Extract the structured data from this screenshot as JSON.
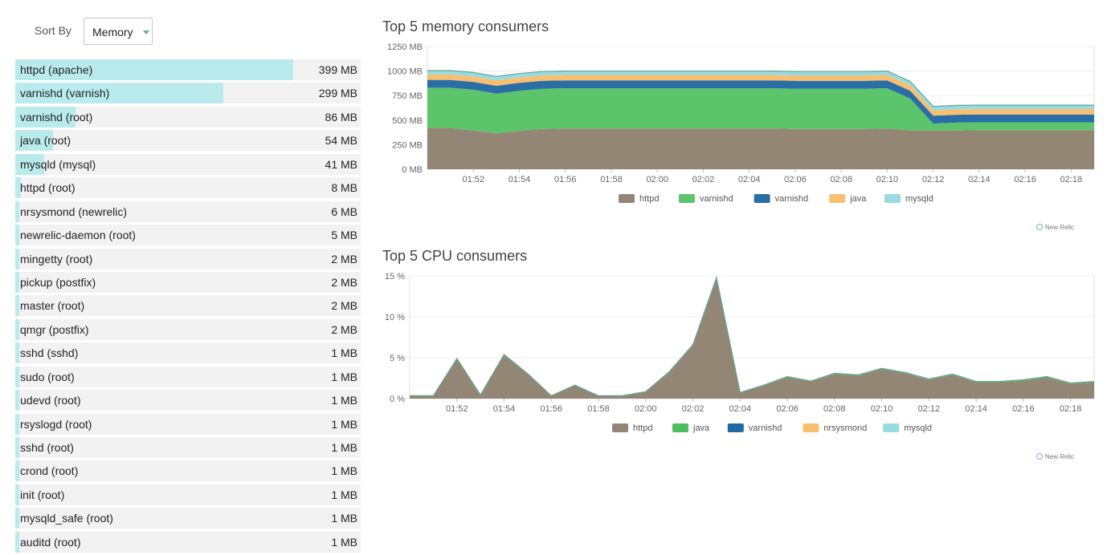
{
  "sort": {
    "label": "Sort By",
    "value": "Memory"
  },
  "process_list": [
    {
      "name": "httpd (apache)",
      "value": "399 MB",
      "mb": 399
    },
    {
      "name": "varnishd (varnish)",
      "value": "299 MB",
      "mb": 299
    },
    {
      "name": "varnishd (root)",
      "value": "86 MB",
      "mb": 86
    },
    {
      "name": "java (root)",
      "value": "54 MB",
      "mb": 54
    },
    {
      "name": "mysqld (mysql)",
      "value": "41 MB",
      "mb": 41
    },
    {
      "name": "httpd (root)",
      "value": "8 MB",
      "mb": 8
    },
    {
      "name": "nrsysmond (newrelic)",
      "value": "6 MB",
      "mb": 6
    },
    {
      "name": "newrelic-daemon (root)",
      "value": "5 MB",
      "mb": 5
    },
    {
      "name": "mingetty (root)",
      "value": "2 MB",
      "mb": 2
    },
    {
      "name": "pickup (postfix)",
      "value": "2 MB",
      "mb": 2
    },
    {
      "name": "master (root)",
      "value": "2 MB",
      "mb": 2
    },
    {
      "name": "qmgr (postfix)",
      "value": "2 MB",
      "mb": 2
    },
    {
      "name": "sshd (sshd)",
      "value": "1 MB",
      "mb": 1
    },
    {
      "name": "sudo (root)",
      "value": "1 MB",
      "mb": 1
    },
    {
      "name": "udevd (root)",
      "value": "1 MB",
      "mb": 1
    },
    {
      "name": "rsyslogd (root)",
      "value": "1 MB",
      "mb": 1
    },
    {
      "name": "sshd (root)",
      "value": "1 MB",
      "mb": 1
    },
    {
      "name": "crond (root)",
      "value": "1 MB",
      "mb": 1
    },
    {
      "name": "init (root)",
      "value": "1 MB",
      "mb": 1
    },
    {
      "name": "mysqld_safe (root)",
      "value": "1 MB",
      "mb": 1
    },
    {
      "name": "auditd (root)",
      "value": "1 MB",
      "mb": 1
    }
  ],
  "list_scale_max_mb": 399,
  "watermark": "New Relic",
  "chart_data": [
    {
      "type": "area",
      "title": "Top 5 memory consumers",
      "ylim": [
        0,
        1250
      ],
      "y_ticks": [
        0,
        250,
        500,
        750,
        1000,
        1250
      ],
      "y_tick_labels": [
        "0 MB",
        "250 MB",
        "500 MB",
        "750 MB",
        "1000 MB",
        "1250 MB"
      ],
      "x_range": [
        "01:50",
        "02:19"
      ],
      "x_tick_labels": [
        "01:52",
        "01:54",
        "01:56",
        "01:58",
        "02:00",
        "02:02",
        "02:04",
        "02:06",
        "02:08",
        "02:10",
        "02:12",
        "02:14",
        "02:16",
        "02:18"
      ],
      "x": [
        "01:50",
        "01:51",
        "01:52",
        "01:53",
        "01:54",
        "01:55",
        "01:56",
        "01:57",
        "01:58",
        "01:59",
        "02:00",
        "02:01",
        "02:02",
        "02:03",
        "02:04",
        "02:05",
        "02:06",
        "02:07",
        "02:08",
        "02:09",
        "02:10",
        "02:11",
        "02:12",
        "02:13",
        "02:14",
        "02:15",
        "02:16",
        "02:17",
        "02:18",
        "02:19"
      ],
      "stacked": true,
      "legend_position": "bottom",
      "series": [
        {
          "name": "httpd",
          "color": "#948675",
          "values": [
            420,
            420,
            395,
            365,
            390,
            410,
            415,
            415,
            415,
            415,
            415,
            415,
            415,
            415,
            415,
            415,
            410,
            410,
            410,
            410,
            415,
            395,
            395,
            395,
            398,
            398,
            398,
            398,
            398,
            398
          ]
        },
        {
          "name": "varnishd",
          "color": "#5cc46a",
          "values": [
            410,
            410,
            415,
            405,
            410,
            410,
            410,
            410,
            410,
            410,
            410,
            410,
            410,
            410,
            410,
            410,
            410,
            410,
            410,
            410,
            410,
            325,
            70,
            80,
            80,
            80,
            80,
            80,
            80,
            80
          ]
        },
        {
          "name": "varnishd",
          "color": "#2a6ea6",
          "values": [
            80,
            80,
            80,
            80,
            80,
            80,
            80,
            80,
            80,
            80,
            80,
            80,
            80,
            80,
            80,
            80,
            80,
            80,
            80,
            80,
            80,
            80,
            80,
            80,
            80,
            80,
            80,
            80,
            80,
            80
          ]
        },
        {
          "name": "java",
          "color": "#f9bf6e",
          "values": [
            55,
            55,
            55,
            55,
            55,
            55,
            55,
            55,
            55,
            55,
            55,
            55,
            55,
            55,
            55,
            55,
            55,
            55,
            55,
            55,
            55,
            55,
            55,
            55,
            55,
            55,
            55,
            55,
            55,
            55
          ]
        },
        {
          "name": "mysqld",
          "color": "#98dbe2",
          "values": [
            40,
            40,
            40,
            40,
            40,
            40,
            40,
            40,
            40,
            40,
            40,
            40,
            40,
            40,
            40,
            40,
            40,
            40,
            40,
            40,
            40,
            40,
            40,
            40,
            40,
            40,
            40,
            40,
            40,
            40
          ]
        }
      ]
    },
    {
      "type": "area",
      "title": "Top 5 CPU consumers",
      "ylim": [
        0,
        15
      ],
      "y_ticks": [
        0,
        5,
        10,
        15
      ],
      "y_tick_labels": [
        "0 %",
        "5 %",
        "10 %",
        "15 %"
      ],
      "x_range": [
        "01:50",
        "02:19"
      ],
      "x_tick_labels": [
        "01:52",
        "01:54",
        "01:56",
        "01:58",
        "02:00",
        "02:02",
        "02:04",
        "02:06",
        "02:08",
        "02:10",
        "02:12",
        "02:14",
        "02:16",
        "02:18"
      ],
      "x": [
        "01:50",
        "01:51",
        "01:52",
        "01:53",
        "01:54",
        "01:55",
        "01:56",
        "01:57",
        "01:58",
        "01:59",
        "02:00",
        "02:01",
        "02:02",
        "02:03",
        "02:04",
        "02:05",
        "02:06",
        "02:07",
        "02:08",
        "02:09",
        "02:10",
        "02:11",
        "02:12",
        "02:13",
        "02:14",
        "02:15",
        "02:16",
        "02:17",
        "02:18",
        "02:19"
      ],
      "stacked": true,
      "legend_position": "bottom",
      "series": [
        {
          "name": "httpd",
          "color": "#948675",
          "values": [
            0.3,
            0.3,
            4.8,
            0.4,
            5.3,
            3.0,
            0.3,
            1.6,
            0.3,
            0.3,
            0.8,
            3.2,
            6.5,
            14.6,
            0.7,
            1.6,
            2.6,
            2.1,
            3.0,
            2.8,
            3.6,
            3.1,
            2.3,
            2.9,
            2.0,
            2.0,
            2.2,
            2.6,
            1.8,
            2.0
          ]
        },
        {
          "name": "java",
          "color": "#4dbd5d",
          "values": [
            0.05,
            0.05,
            0.1,
            0.05,
            0.1,
            0.05,
            0.05,
            0.05,
            0.05,
            0.05,
            0.05,
            0.1,
            0.1,
            0.2,
            0.05,
            0.05,
            0.1,
            0.05,
            0.1,
            0.1,
            0.1,
            0.1,
            0.1,
            0.1,
            0.1,
            0.1,
            0.1,
            0.1,
            0.1,
            0.1
          ]
        },
        {
          "name": "varnishd",
          "color": "#1f6aa3",
          "values": [
            0,
            0,
            0,
            0,
            0,
            0,
            0,
            0,
            0,
            0,
            0,
            0,
            0,
            0,
            0,
            0,
            0,
            0,
            0,
            0,
            0,
            0,
            0,
            0,
            0,
            0,
            0,
            0,
            0,
            0
          ]
        },
        {
          "name": "nrsysmond",
          "color": "#f9bf6e",
          "values": [
            0,
            0,
            0,
            0,
            0,
            0,
            0,
            0,
            0,
            0,
            0,
            0,
            0,
            0,
            0,
            0,
            0,
            0,
            0,
            0,
            0,
            0,
            0,
            0,
            0,
            0,
            0,
            0,
            0,
            0
          ]
        },
        {
          "name": "mysqld",
          "color": "#98dbe2",
          "values": [
            0,
            0,
            0,
            0,
            0,
            0,
            0,
            0,
            0,
            0,
            0,
            0,
            0,
            0,
            0,
            0,
            0,
            0,
            0,
            0,
            0,
            0,
            0,
            0,
            0,
            0,
            0,
            0,
            0,
            0
          ]
        }
      ]
    }
  ]
}
